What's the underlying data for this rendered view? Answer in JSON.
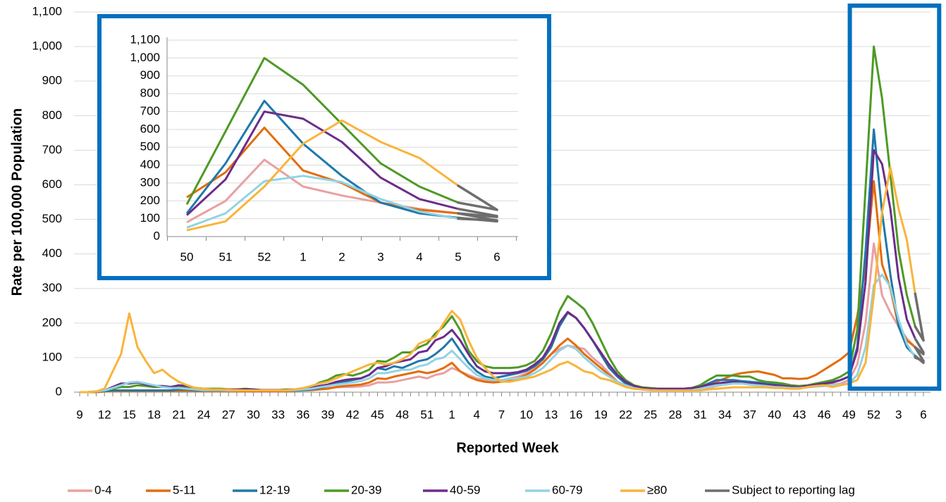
{
  "chart_data": [
    {
      "type": "line",
      "x_label": "Reported Week",
      "y_label": "Rate per 100,000 Population",
      "categories": [
        "9",
        null,
        null,
        "12",
        null,
        null,
        "15",
        null,
        null,
        "18",
        null,
        null,
        "21",
        null,
        null,
        "24",
        null,
        null,
        "27",
        null,
        null,
        "30",
        null,
        null,
        "33",
        null,
        null,
        "36",
        null,
        null,
        "39",
        null,
        null,
        "42",
        null,
        null,
        "45",
        null,
        null,
        "48",
        null,
        null,
        "51",
        null,
        null,
        "1",
        null,
        null,
        "4",
        null,
        null,
        "7",
        null,
        null,
        "10",
        null,
        null,
        "13",
        null,
        null,
        "16",
        null,
        null,
        "19",
        null,
        null,
        "22",
        null,
        null,
        "25",
        null,
        null,
        "28",
        null,
        null,
        "31",
        null,
        null,
        "34",
        null,
        null,
        "37",
        null,
        null,
        "40",
        null,
        null,
        "43",
        null,
        null,
        "46",
        null,
        null,
        "49",
        null,
        null,
        "52",
        null,
        null,
        "3",
        null,
        null,
        "6"
      ],
      "ylim": [
        0,
        1100
      ],
      "yticks": [
        0,
        100,
        200,
        300,
        400,
        500,
        600,
        700,
        800,
        900,
        {
          "value": 1000,
          "label": "1,000"
        },
        {
          "value": 1100,
          "label": "1,100"
        }
      ],
      "grid": true,
      "series": [
        {
          "name": "0-4",
          "color": "#e8a0a0",
          "values": [
            0,
            0,
            0,
            2,
            3,
            4,
            5,
            5,
            5,
            4,
            4,
            4,
            6,
            6,
            5,
            5,
            4,
            4,
            4,
            4,
            4,
            4,
            4,
            4,
            4,
            4,
            5,
            6,
            8,
            10,
            12,
            14,
            15,
            15,
            17,
            20,
            28,
            28,
            30,
            35,
            40,
            45,
            40,
            50,
            55,
            70,
            60,
            50,
            40,
            35,
            32,
            35,
            40,
            45,
            55,
            70,
            85,
            110,
            125,
            135,
            130,
            125,
            100,
            80,
            55,
            30,
            20,
            12,
            8,
            6,
            5,
            5,
            5,
            5,
            6,
            8,
            12,
            18,
            22,
            25,
            25,
            25,
            22,
            20,
            18,
            15,
            14,
            12,
            15,
            18,
            20,
            22,
            25,
            35,
            80,
            200,
            430,
            280,
            230,
            190,
            155,
            130,
            90
          ]
        },
        {
          "name": "5-11",
          "color": "#e36c0a",
          "values": [
            0,
            0,
            0,
            2,
            3,
            3,
            3,
            3,
            3,
            3,
            3,
            3,
            4,
            4,
            4,
            3,
            3,
            3,
            3,
            3,
            3,
            3,
            3,
            3,
            3,
            3,
            4,
            5,
            6,
            8,
            10,
            15,
            18,
            20,
            22,
            28,
            40,
            38,
            45,
            50,
            55,
            60,
            55,
            60,
            70,
            85,
            60,
            45,
            35,
            30,
            28,
            30,
            35,
            40,
            50,
            65,
            85,
            110,
            135,
            155,
            135,
            110,
            90,
            70,
            50,
            30,
            20,
            12,
            8,
            6,
            5,
            5,
            5,
            5,
            6,
            10,
            20,
            30,
            40,
            50,
            55,
            58,
            60,
            55,
            50,
            40,
            40,
            38,
            40,
            50,
            65,
            80,
            95,
            115,
            220,
            360,
            610,
            370,
            300,
            190,
            150,
            130,
            110
          ]
        },
        {
          "name": "12-19",
          "color": "#1f78aa",
          "values": [
            0,
            0,
            2,
            3,
            5,
            5,
            5,
            5,
            5,
            5,
            5,
            5,
            8,
            8,
            6,
            5,
            5,
            5,
            5,
            5,
            5,
            5,
            5,
            5,
            5,
            5,
            5,
            6,
            8,
            12,
            18,
            25,
            30,
            35,
            40,
            50,
            70,
            65,
            75,
            70,
            80,
            90,
            95,
            110,
            130,
            155,
            120,
            85,
            60,
            45,
            40,
            45,
            50,
            55,
            62,
            75,
            95,
            130,
            190,
            230,
            215,
            185,
            150,
            110,
            70,
            45,
            25,
            15,
            10,
            8,
            8,
            8,
            8,
            8,
            10,
            15,
            25,
            35,
            35,
            35,
            32,
            30,
            28,
            25,
            22,
            20,
            18,
            16,
            18,
            22,
            25,
            30,
            35,
            45,
            130,
            410,
            760,
            520,
            340,
            190,
            130,
            105,
            85
          ]
        },
        {
          "name": "20-39",
          "color": "#4e9a25",
          "values": [
            0,
            0,
            2,
            5,
            10,
            15,
            15,
            20,
            18,
            15,
            15,
            15,
            18,
            15,
            12,
            10,
            10,
            10,
            8,
            8,
            10,
            8,
            6,
            6,
            6,
            8,
            8,
            10,
            15,
            28,
            35,
            48,
            52,
            48,
            55,
            65,
            90,
            88,
            100,
            115,
            115,
            130,
            140,
            170,
            190,
            220,
            180,
            120,
            90,
            75,
            70,
            70,
            70,
            72,
            78,
            90,
            120,
            170,
            235,
            278,
            260,
            240,
            200,
            150,
            100,
            60,
            35,
            20,
            14,
            12,
            10,
            10,
            10,
            10,
            12,
            20,
            35,
            48,
            48,
            48,
            45,
            45,
            35,
            30,
            28,
            25,
            20,
            18,
            20,
            25,
            30,
            35,
            45,
            60,
            180,
            590,
            1000,
            850,
            630,
            410,
            280,
            190,
            150
          ]
        },
        {
          "name": "40-59",
          "color": "#6b2d8a",
          "values": [
            0,
            0,
            2,
            5,
            15,
            25,
            25,
            28,
            22,
            18,
            18,
            15,
            20,
            18,
            12,
            10,
            8,
            8,
            8,
            8,
            8,
            8,
            6,
            6,
            6,
            6,
            8,
            10,
            12,
            18,
            22,
            30,
            35,
            38,
            40,
            50,
            70,
            75,
            85,
            90,
            95,
            115,
            120,
            150,
            160,
            180,
            150,
            110,
            75,
            60,
            55,
            55,
            55,
            58,
            65,
            80,
            100,
            140,
            200,
            232,
            215,
            185,
            150,
            115,
            80,
            50,
            30,
            18,
            12,
            10,
            10,
            10,
            10,
            10,
            12,
            15,
            22,
            25,
            28,
            30,
            28,
            25,
            25,
            22,
            20,
            18,
            16,
            15,
            18,
            22,
            25,
            28,
            35,
            45,
            120,
            320,
            700,
            660,
            530,
            330,
            210,
            155,
            115
          ]
        },
        {
          "name": "60-79",
          "color": "#92d3e3",
          "values": [
            0,
            0,
            2,
            5,
            12,
            20,
            28,
            30,
            25,
            20,
            15,
            12,
            12,
            10,
            8,
            6,
            6,
            6,
            5,
            5,
            5,
            5,
            5,
            5,
            5,
            5,
            6,
            8,
            10,
            14,
            18,
            22,
            25,
            28,
            32,
            40,
            55,
            55,
            60,
            65,
            65,
            75,
            80,
            95,
            100,
            120,
            95,
            70,
            50,
            40,
            35,
            35,
            38,
            40,
            45,
            55,
            70,
            95,
            120,
            135,
            125,
            100,
            80,
            60,
            45,
            30,
            20,
            12,
            8,
            6,
            5,
            5,
            5,
            5,
            6,
            10,
            15,
            20,
            22,
            25,
            25,
            22,
            20,
            18,
            15,
            14,
            12,
            12,
            14,
            16,
            18,
            20,
            22,
            25,
            50,
            130,
            310,
            340,
            305,
            210,
            140,
            100,
            90
          ]
        },
        {
          "name": "≥80",
          "color": "#f9b43a",
          "values": [
            0,
            0,
            2,
            10,
            60,
            110,
            228,
            130,
            90,
            55,
            65,
            45,
            30,
            20,
            12,
            10,
            8,
            8,
            7,
            6,
            5,
            5,
            5,
            5,
            5,
            6,
            8,
            12,
            18,
            25,
            30,
            40,
            50,
            60,
            70,
            80,
            85,
            80,
            85,
            95,
            110,
            140,
            150,
            160,
            200,
            235,
            210,
            150,
            100,
            70,
            45,
            30,
            30,
            35,
            40,
            45,
            55,
            65,
            80,
            88,
            75,
            60,
            55,
            40,
            35,
            25,
            15,
            10,
            8,
            6,
            5,
            5,
            5,
            5,
            5,
            5,
            8,
            10,
            12,
            14,
            14,
            14,
            14,
            14,
            12,
            12,
            10,
            10,
            15,
            18,
            20,
            15,
            20,
            25,
            35,
            85,
            280,
            520,
            650,
            530,
            440,
            285,
            150
          ]
        }
      ],
      "lag": {
        "name": "Subject to reporting lag",
        "color": "#6d6d6d",
        "last_segment": true
      }
    },
    {
      "type": "line",
      "categories": [
        "50",
        "51",
        "52",
        "1",
        "2",
        "3",
        "4",
        "5",
        "6"
      ],
      "ylim": [
        0,
        1100
      ],
      "yticks": [
        0,
        100,
        200,
        300,
        400,
        500,
        600,
        700,
        800,
        900,
        {
          "value": 1000,
          "label": "1,000"
        },
        {
          "value": 1100,
          "label": "1,100"
        }
      ],
      "grid": true,
      "series": [
        {
          "color": "#e8a0a0",
          "values": [
            80,
            200,
            430,
            280,
            230,
            190,
            155,
            130,
            90
          ]
        },
        {
          "color": "#e36c0a",
          "values": [
            220,
            360,
            610,
            370,
            300,
            190,
            150,
            130,
            110
          ]
        },
        {
          "color": "#1f78aa",
          "values": [
            130,
            410,
            760,
            520,
            340,
            190,
            130,
            105,
            85
          ]
        },
        {
          "color": "#4e9a25",
          "values": [
            180,
            590,
            1000,
            850,
            630,
            410,
            280,
            190,
            150
          ]
        },
        {
          "color": "#6b2d8a",
          "values": [
            120,
            320,
            700,
            660,
            530,
            330,
            210,
            155,
            115
          ]
        },
        {
          "color": "#92d3e3",
          "values": [
            50,
            130,
            310,
            340,
            305,
            210,
            140,
            100,
            90
          ]
        },
        {
          "color": "#f9b43a",
          "values": [
            35,
            85,
            280,
            520,
            650,
            530,
            440,
            285,
            150
          ]
        }
      ],
      "lag": {
        "color": "#6d6d6d",
        "last_segment": true
      }
    }
  ]
}
